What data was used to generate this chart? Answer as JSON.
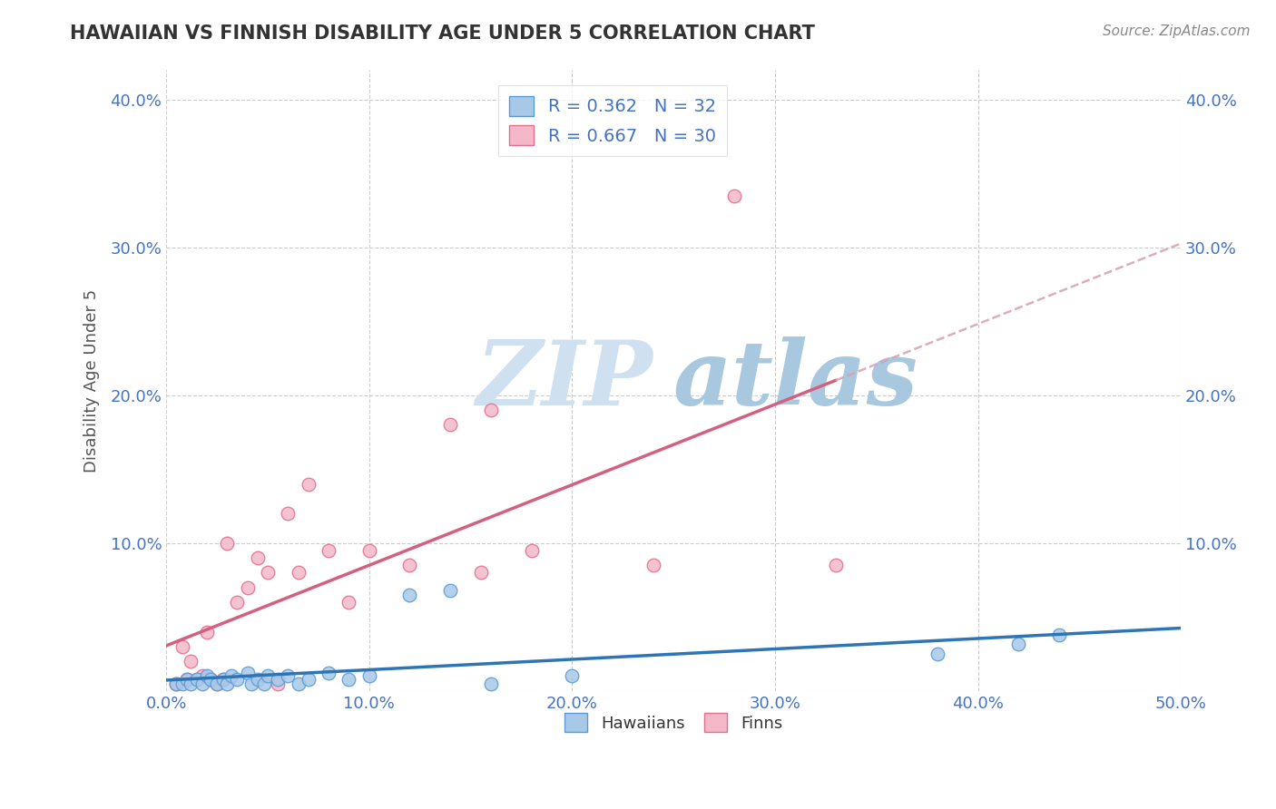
{
  "title": "HAWAIIAN VS FINNISH DISABILITY AGE UNDER 5 CORRELATION CHART",
  "source": "Source: ZipAtlas.com",
  "ylabel": "Disability Age Under 5",
  "xlabel": "",
  "xlim": [
    0.0,
    0.5
  ],
  "ylim": [
    0.0,
    0.42
  ],
  "xtick_labels": [
    "0.0%",
    "10.0%",
    "20.0%",
    "30.0%",
    "40.0%",
    "50.0%"
  ],
  "xtick_vals": [
    0.0,
    0.1,
    0.2,
    0.3,
    0.4,
    0.5
  ],
  "ytick_labels": [
    "",
    "10.0%",
    "20.0%",
    "30.0%",
    "40.0%"
  ],
  "ytick_vals": [
    0.0,
    0.1,
    0.2,
    0.3,
    0.4
  ],
  "hawaiian_color": "#a8c8e8",
  "hawaiian_edge": "#5b9bd5",
  "finn_color": "#f4b8c8",
  "finn_edge": "#e07090",
  "trend_hawaiian_color": "#2e75b6",
  "trend_finn_color": "#d46080",
  "trend_dash_color": "#d4a0b0",
  "legend_r_hawaiian": "R = 0.362",
  "legend_n_hawaiian": "N = 32",
  "legend_r_finn": "R = 0.667",
  "legend_n_finn": "N = 30",
  "hawaiian_x": [
    0.005,
    0.008,
    0.01,
    0.012,
    0.015,
    0.018,
    0.02,
    0.022,
    0.025,
    0.028,
    0.03,
    0.032,
    0.035,
    0.04,
    0.042,
    0.045,
    0.048,
    0.05,
    0.055,
    0.06,
    0.065,
    0.07,
    0.08,
    0.09,
    0.1,
    0.12,
    0.14,
    0.16,
    0.2,
    0.38,
    0.42,
    0.44
  ],
  "hawaiian_y": [
    0.005,
    0.005,
    0.008,
    0.005,
    0.008,
    0.005,
    0.01,
    0.008,
    0.005,
    0.008,
    0.005,
    0.01,
    0.008,
    0.012,
    0.005,
    0.008,
    0.005,
    0.01,
    0.008,
    0.01,
    0.005,
    0.008,
    0.012,
    0.008,
    0.01,
    0.065,
    0.068,
    0.005,
    0.01,
    0.025,
    0.032,
    0.038
  ],
  "finn_x": [
    0.005,
    0.008,
    0.01,
    0.012,
    0.015,
    0.018,
    0.02,
    0.022,
    0.025,
    0.028,
    0.03,
    0.035,
    0.04,
    0.045,
    0.05,
    0.055,
    0.06,
    0.065,
    0.07,
    0.08,
    0.09,
    0.1,
    0.12,
    0.14,
    0.155,
    0.16,
    0.18,
    0.24,
    0.28,
    0.33
  ],
  "finn_y": [
    0.005,
    0.03,
    0.008,
    0.02,
    0.008,
    0.01,
    0.04,
    0.008,
    0.005,
    0.008,
    0.1,
    0.06,
    0.07,
    0.09,
    0.08,
    0.005,
    0.12,
    0.08,
    0.14,
    0.095,
    0.06,
    0.095,
    0.085,
    0.18,
    0.08,
    0.19,
    0.095,
    0.085,
    0.335,
    0.085
  ],
  "background_color": "#ffffff",
  "grid_color": "#cccccc",
  "watermark_zip": "ZIP",
  "watermark_atlas": "atlas",
  "watermark_color_zip": "#c8dff0",
  "watermark_color_atlas": "#a0c8e8",
  "finn_trend_solid_end": 0.33,
  "finn_trend_dash_end": 0.5,
  "title_fontsize": 15,
  "tick_fontsize": 13,
  "ylabel_fontsize": 13
}
